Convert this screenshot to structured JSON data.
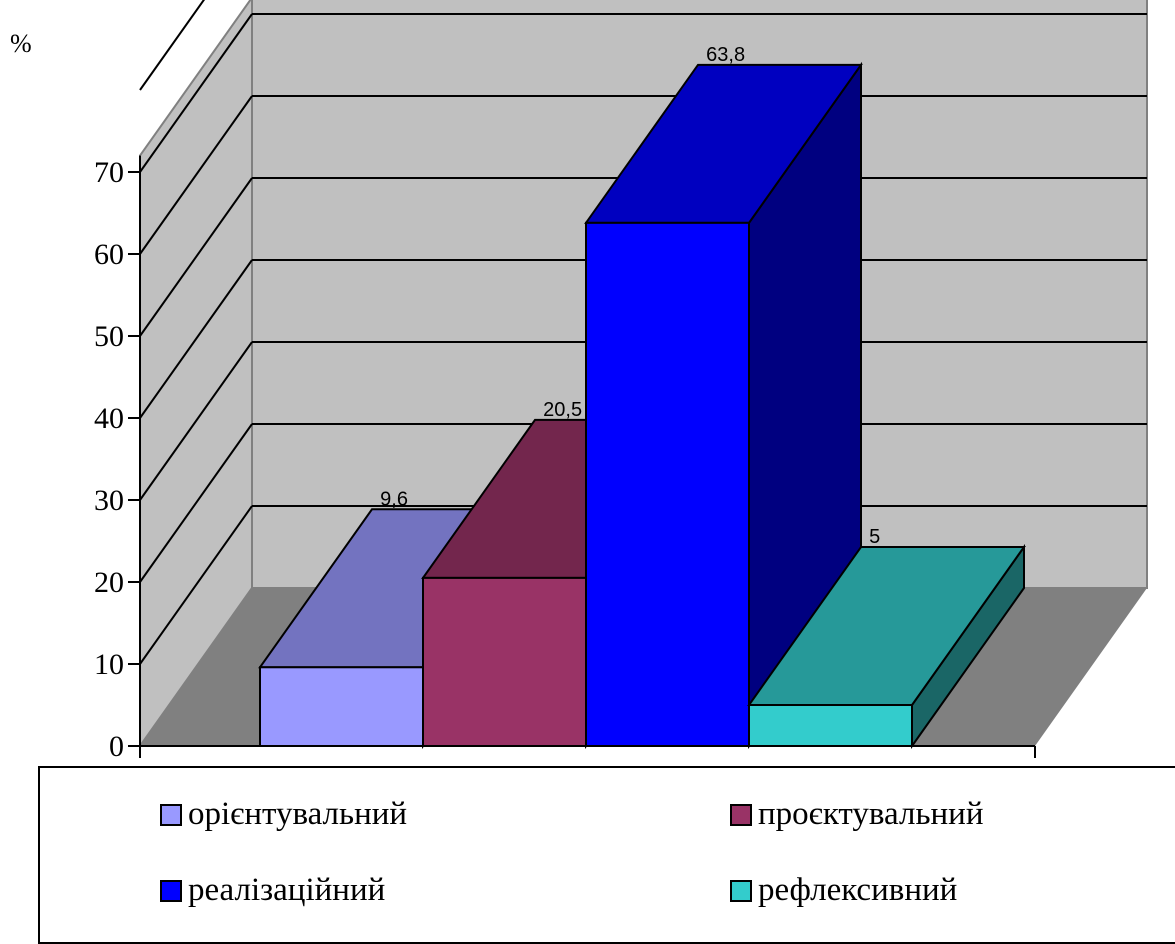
{
  "chart_data": {
    "type": "bar",
    "ylabel": "%",
    "ylim": [
      0,
      70
    ],
    "yticks": [
      0,
      10,
      20,
      30,
      40,
      50,
      60,
      70
    ],
    "grid": true,
    "legend_position": "bottom",
    "series": [
      {
        "name": "орієнтувальний",
        "value": 9.6,
        "value_label": "9,6",
        "color": "#9999ff",
        "top_color": "#7373c0",
        "side_color": "#5a5a9a"
      },
      {
        "name": "проєктувальний",
        "value": 20.5,
        "value_label": "20,5",
        "color": "#993366",
        "top_color": "#73264d",
        "side_color": "#5c1f3e"
      },
      {
        "name": "реалізаційний",
        "value": 63.8,
        "value_label": "63,8",
        "color": "#0000ff",
        "top_color": "#0000c0",
        "side_color": "#000080"
      },
      {
        "name": "рефлексивний",
        "value": 5,
        "value_label": "5",
        "color": "#33cccc",
        "top_color": "#269999",
        "side_color": "#1a6666"
      }
    ]
  },
  "colors": {
    "back_wall": "#c0c0c0",
    "floor": "#808080"
  }
}
